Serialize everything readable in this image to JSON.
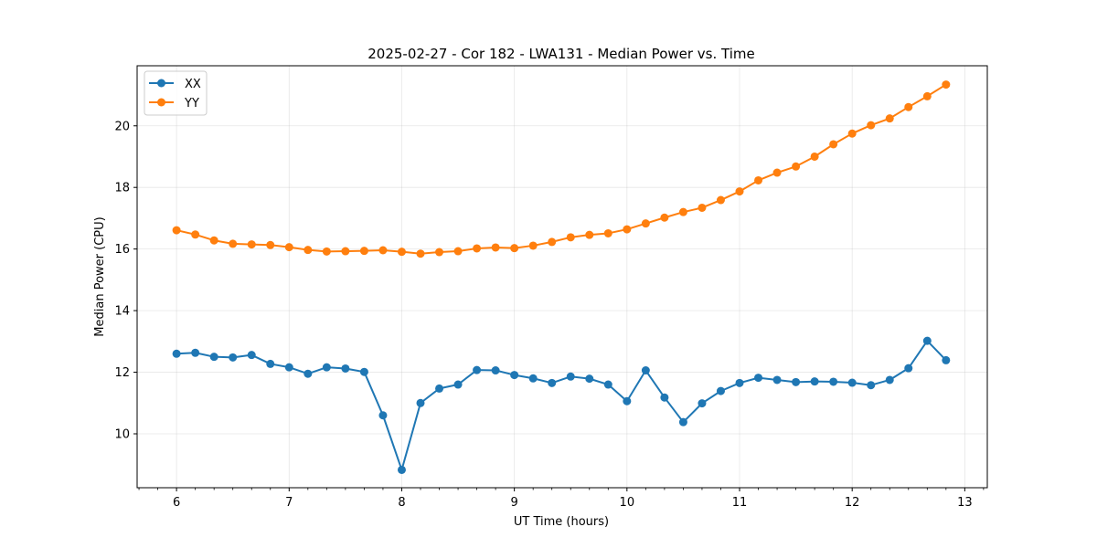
{
  "chart_data": {
    "type": "line",
    "title": "2025-02-27 - Cor 182 - LWA131 - Median Power vs. Time",
    "xlabel": "UT Time (hours)",
    "ylabel": "Median Power (CPU)",
    "xlim": [
      5.65,
      13.2
    ],
    "ylim": [
      8.25,
      21.95
    ],
    "x_ticks": [
      6,
      7,
      8,
      9,
      10,
      11,
      12,
      13
    ],
    "x_tick_labels": [
      "6",
      "7",
      "8",
      "9",
      "10",
      "11",
      "12",
      "13"
    ],
    "y_ticks": [
      10,
      12,
      14,
      16,
      18,
      20
    ],
    "y_tick_labels": [
      "10",
      "12",
      "14",
      "16",
      "18",
      "20"
    ],
    "grid": true,
    "legend_position": "top-left",
    "x": [
      6.0,
      6.1667,
      6.3333,
      6.5,
      6.6667,
      6.8333,
      7.0,
      7.1667,
      7.3333,
      7.5,
      7.6667,
      7.8333,
      8.0,
      8.1667,
      8.3333,
      8.5,
      8.6667,
      8.8333,
      9.0,
      9.1667,
      9.3333,
      9.5,
      9.6667,
      9.8333,
      10.0,
      10.1667,
      10.3333,
      10.5,
      10.6667,
      10.8333,
      11.0,
      11.1667,
      11.3333,
      11.5,
      11.6667,
      11.8333,
      12.0,
      12.1667,
      12.3333,
      12.5,
      12.6667,
      12.8333
    ],
    "series": [
      {
        "name": "XX",
        "color": "#1f77b4",
        "values": [
          12.6,
          12.63,
          12.5,
          12.48,
          12.56,
          12.27,
          12.16,
          11.95,
          12.16,
          12.12,
          12.01,
          10.6,
          8.83,
          11.0,
          11.47,
          11.6,
          12.07,
          12.06,
          11.91,
          11.8,
          11.65,
          11.86,
          11.79,
          11.6,
          11.06,
          12.06,
          11.18,
          10.38,
          10.99,
          11.39,
          11.65,
          11.82,
          11.75,
          11.68,
          11.7,
          11.69,
          11.66,
          11.58,
          11.75,
          12.13,
          13.02,
          12.39
        ]
      },
      {
        "name": "YY",
        "color": "#ff7f0e",
        "values": [
          16.61,
          16.47,
          16.28,
          16.17,
          16.15,
          16.13,
          16.06,
          15.97,
          15.92,
          15.93,
          15.94,
          15.96,
          15.91,
          15.85,
          15.9,
          15.93,
          16.02,
          16.05,
          16.03,
          16.11,
          16.23,
          16.38,
          16.46,
          16.51,
          16.64,
          16.83,
          17.02,
          17.2,
          17.34,
          17.59,
          17.87,
          18.23,
          18.48,
          18.68,
          19.0,
          19.4,
          19.75,
          20.02,
          20.24,
          20.61,
          20.96,
          21.34
        ]
      }
    ]
  }
}
